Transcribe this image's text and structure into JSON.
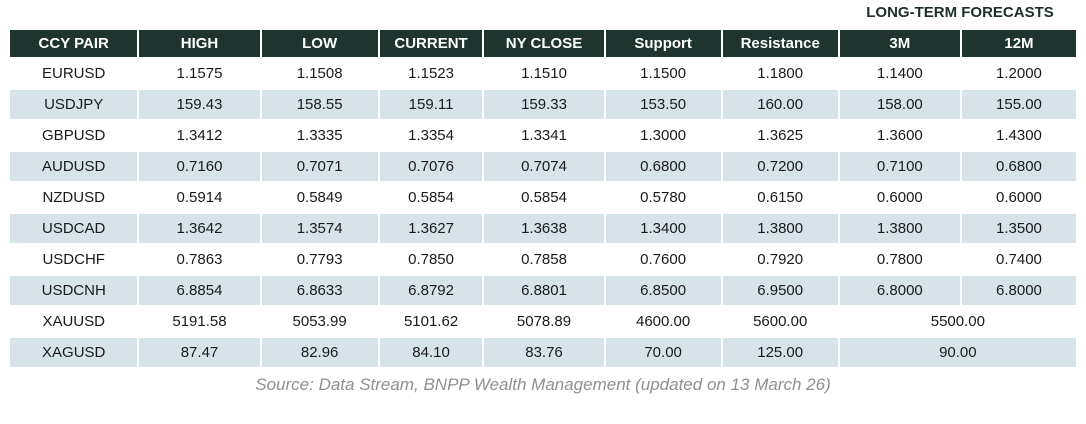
{
  "header": {
    "long_term_label": "LONG-TERM FORECASTS"
  },
  "table": {
    "headers": [
      "CCY PAIR",
      "HIGH",
      "LOW",
      "CURRENT",
      "NY CLOSE",
      "Support",
      "Resistance",
      "3M",
      "12M"
    ],
    "rows": [
      {
        "pair": "EURUSD",
        "high": "1.1575",
        "low": "1.1508",
        "current": "1.1523",
        "ny_close": "1.1510",
        "support": "1.1500",
        "resistance": "1.1800",
        "m3": "1.1400",
        "m12": "1.2000"
      },
      {
        "pair": "USDJPY",
        "high": "159.43",
        "low": "158.55",
        "current": "159.11",
        "ny_close": "159.33",
        "support": "153.50",
        "resistance": "160.00",
        "m3": "158.00",
        "m12": "155.00"
      },
      {
        "pair": "GBPUSD",
        "high": "1.3412",
        "low": "1.3335",
        "current": "1.3354",
        "ny_close": "1.3341",
        "support": "1.3000",
        "resistance": "1.3625",
        "m3": "1.3600",
        "m12": "1.4300"
      },
      {
        "pair": "AUDUSD",
        "high": "0.7160",
        "low": "0.7071",
        "current": "0.7076",
        "ny_close": "0.7074",
        "support": "0.6800",
        "resistance": "0.7200",
        "m3": "0.7100",
        "m12": "0.6800"
      },
      {
        "pair": "NZDUSD",
        "high": "0.5914",
        "low": "0.5849",
        "current": "0.5854",
        "ny_close": "0.5854",
        "support": "0.5780",
        "resistance": "0.6150",
        "m3": "0.6000",
        "m12": "0.6000"
      },
      {
        "pair": "USDCAD",
        "high": "1.3642",
        "low": "1.3574",
        "current": "1.3627",
        "ny_close": "1.3638",
        "support": "1.3400",
        "resistance": "1.3800",
        "m3": "1.3800",
        "m12": "1.3500"
      },
      {
        "pair": "USDCHF",
        "high": "0.7863",
        "low": "0.7793",
        "current": "0.7850",
        "ny_close": "0.7858",
        "support": "0.7600",
        "resistance": "0.7920",
        "m3": "0.7800",
        "m12": "0.7400"
      },
      {
        "pair": "USDCNH",
        "high": "6.8854",
        "low": "6.8633",
        "current": "6.8792",
        "ny_close": "6.8801",
        "support": "6.8500",
        "resistance": "6.9500",
        "m3": "6.8000",
        "m12": "6.8000"
      },
      {
        "pair": "XAUUSD",
        "high": "5191.58",
        "low": "5053.99",
        "current": "5101.62",
        "ny_close": "5078.89",
        "support": "4600.00",
        "resistance": "5600.00",
        "forecast": "5500.00"
      },
      {
        "pair": "XAGUSD",
        "high": "87.47",
        "low": "82.96",
        "current": "84.10",
        "ny_close": "83.76",
        "support": "70.00",
        "resistance": "125.00",
        "forecast": "90.00"
      }
    ]
  },
  "footer": {
    "source": "Source: Data Stream, BNPP Wealth Management (updated on 13 March 26)"
  },
  "colors": {
    "page_bg": "#ffffff",
    "header_bg": "#1e352f",
    "header_text": "#ffffff",
    "row_stripe": "#d6e3e9",
    "row_plain": "#ffffff",
    "forecast_label_text": "#1c2f2b",
    "source_text": "#8f8f8f"
  }
}
